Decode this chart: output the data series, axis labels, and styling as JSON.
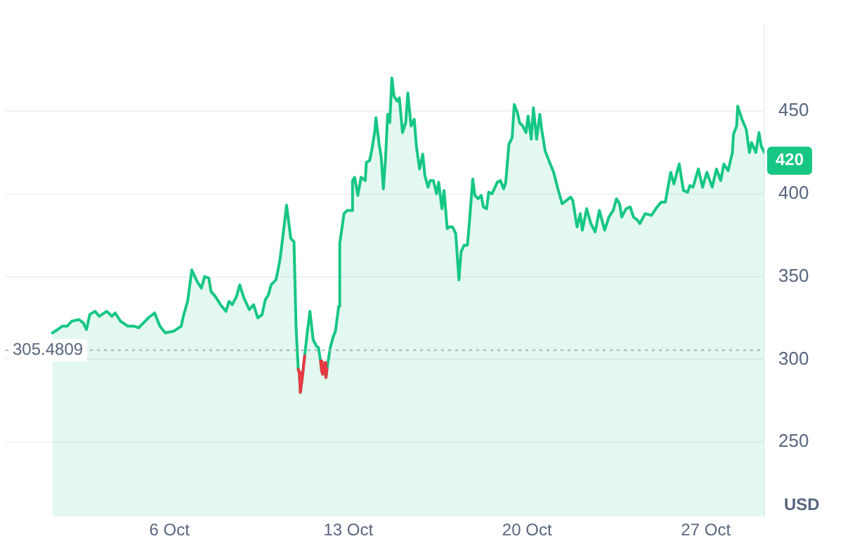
{
  "chart_data": {
    "type": "area",
    "ylabel": "USD",
    "xlim": [
      "--09-29T14:00",
      "--10-29T07:00"
    ],
    "ylim": [
      205,
      502
    ],
    "xticks": [
      {
        "value": "--10-06",
        "label": "6 Oct"
      },
      {
        "value": "--10-13",
        "label": "13 Oct"
      },
      {
        "value": "--10-20",
        "label": "20 Oct"
      },
      {
        "value": "--10-27",
        "label": "27 Oct"
      }
    ],
    "yticks": [
      250,
      300,
      350,
      400,
      450
    ],
    "grid": "y",
    "legend": false,
    "marker": "none",
    "ref_lines": [
      {
        "axis": "y",
        "value": 305.4809,
        "label": "305.4809",
        "line_style": "dotted",
        "color": "#a6b0c3"
      }
    ],
    "annotations": [
      {
        "text": "420",
        "x": "--10-29T07:00",
        "y": 420
      }
    ],
    "series": [
      {
        "color": "#16c784",
        "x": [
          "--10-01T10:00",
          "--10-01T15:00",
          "--10-01T19:00",
          "--10-02T00:00",
          "--10-02T04:00",
          "--10-02T11:00",
          "--10-02T15:00",
          "--10-02T18:00",
          "--10-02T21:00",
          "--10-03T02:00",
          "--10-03T06:00",
          "--10-03T13:00",
          "--10-03T18:00",
          "--10-03T21:00",
          "--10-04T02:00",
          "--10-04T09:00",
          "--10-04T15:00",
          "--10-04T19:00",
          "--10-05T04:00",
          "--10-05T10:00",
          "--10-05T15:00",
          "--10-05T20:00",
          "--10-06T04:00",
          "--10-06T11:00",
          "--10-06T13:00",
          "--10-06T17:00",
          "--10-06T21:00",
          "--10-07T02:00",
          "--10-07T06:00",
          "--10-07T09:00",
          "--10-07T13:00",
          "--10-07T15:00",
          "--10-07T19:00",
          "--10-08T00:00",
          "--10-08T05:00",
          "--10-08T08:00",
          "--10-08T11:00",
          "--10-08T15:00",
          "--10-08T18:00",
          "--10-08T22:00",
          "--10-09T03:00",
          "--10-09T07:00",
          "--10-09T11:00",
          "--10-09T15:00",
          "--10-09T18:00",
          "--10-09T21:00",
          "--10-09T23:30",
          "--10-10T04:00",
          "--10-10T06:00",
          "--10-10T08:00",
          "--10-10T12:00",
          "--10-10T14:00",
          "--10-10T18:00",
          "--10-10T21:00",
          "--10-10T23:00",
          "--10-11T01:00",
          "--10-11T02:00",
          "--10-11T03:00",
          "--10-11T05:00",
          "--10-11T07:00",
          "--10-11T10:00",
          "--10-11T12:00",
          "--10-11T15:00",
          "--10-11T18:00",
          "--10-11T20:00",
          "--10-11T22:00",
          "--10-11T23:00",
          "--10-12T00:00",
          "--10-12T02:00",
          "--10-12T03:00",
          "--10-12T04:00",
          "--10-12T07:00",
          "--10-12T10:00",
          "--10-12T12:00",
          "--10-12T15:00",
          "--10-12T16:00",
          "--10-12T20:00",
          "--10-12T23:00",
          "--10-13T03:00",
          "--10-13T04:00",
          "--10-13T06:00",
          "--10-13T09:00",
          "--10-13T12:00",
          "--10-13T16:00",
          "--10-13T17:00",
          "--10-13T20:00",
          "--10-13T22:00",
          "--10-14T01:00",
          "--10-14T02:00",
          "--10-14T05:00",
          "--10-14T07:00",
          "--10-14T09:00",
          "--10-14T11:00",
          "--10-14T13:00",
          "--10-14T14:00",
          "--10-14T15:00",
          "--10-14T17:00",
          "--10-14T19:00",
          "--10-14T22:00",
          "--10-15T00:00",
          "--10-15T03:00",
          "--10-15T06:00",
          "--10-15T08:00",
          "--10-15T11:00",
          "--10-15T14:00",
          "--10-15T16:00",
          "--10-15T19:00",
          "--10-15T22:00",
          "--10-16T00:00",
          "--10-16T03:00",
          "--10-16T05:00",
          "--10-16T08:00",
          "--10-16T11:00",
          "--10-16T13:00",
          "--10-16T16:00",
          "--10-16T18:00",
          "--10-16T21:00",
          "--10-16T23:00",
          "--10-17T02:00",
          "--10-17T05:00",
          "--10-17T08:00",
          "--10-17T10:00",
          "--10-17T13:00",
          "--10-17T16:00",
          "--10-17T18:00",
          "--10-17T21:00",
          "--10-17T23:00",
          "--10-18T02:00",
          "--10-18T05:00",
          "--10-18T07:00",
          "--10-18T10:00",
          "--10-18T12:00",
          "--10-18T15:00",
          "--10-18T18:00",
          "--10-18T20:00",
          "--10-18T23:00",
          "--10-19T02:00",
          "--10-19T04:00",
          "--10-19T07:00",
          "--10-19T10:00",
          "--10-19T12:00",
          "--10-19T15:00",
          "--10-19T17:00",
          "--10-19T20:00",
          "--10-19T23:00",
          "--10-20T01:00",
          "--10-20T04:00",
          "--10-20T06:00",
          "--10-20T09:00",
          "--10-20T12:00",
          "--10-20T14:00",
          "--10-20T17:00",
          "--10-20T20:00",
          "--10-21T01:00",
          "--10-21T05:00",
          "--10-21T09:00",
          "--10-21T17:00",
          "--10-21T19:00",
          "--10-21T23:00",
          "--10-22T02:00",
          "--10-22T04:00",
          "--10-22T08:00",
          "--10-22T12:00",
          "--10-22T16:00",
          "--10-22T20:00",
          "--10-23T01:00",
          "--10-23T05:00",
          "--10-23T09:00",
          "--10-23T12:00",
          "--10-23T15:00",
          "--10-23T17:00",
          "--10-23T21:00",
          "--10-24T01:00",
          "--10-24T04:00",
          "--10-24T08:00",
          "--10-24T10:00",
          "--10-24T15:00",
          "--10-24T21:00",
          "--10-25T01:00",
          "--10-25T06:00",
          "--10-25T10:00",
          "--10-25T15:00",
          "--10-25T18:00",
          "--10-25T23:00",
          "--10-26T03:00",
          "--10-26T07:00",
          "--10-26T09:00",
          "--10-26T12:00",
          "--10-26T17:00",
          "--10-26T21:00",
          "--10-27T01:00",
          "--10-27T06:00",
          "--10-27T10:00",
          "--10-27T14:00",
          "--10-27T17:00",
          "--10-27T21:00",
          "--10-28T01:00",
          "--10-28T02:00",
          "--10-28T05:00",
          "--10-28T06:00",
          "--10-28T10:00",
          "--10-28T14:00",
          "--10-28T17:00",
          "--10-28T19:00",
          "--10-28T23:00",
          "--10-29T02:00",
          "--10-29T04:00",
          "--10-29T07:00"
        ],
        "values": [
          316,
          318,
          320,
          320,
          323,
          324,
          322,
          318,
          327,
          329,
          326,
          329,
          326,
          328,
          323,
          320,
          320,
          319,
          325,
          328,
          320,
          316,
          317,
          320,
          326,
          335,
          354,
          347,
          343,
          350,
          349,
          341,
          338,
          333,
          329,
          335,
          333,
          338,
          345,
          337,
          330,
          333,
          325,
          327,
          336,
          339,
          345,
          348,
          354,
          361,
          382,
          393,
          373,
          371,
          319,
          294,
          292,
          280,
          290,
          302,
          319,
          329,
          312,
          308,
          307,
          299,
          293,
          291,
          298,
          289,
          294,
          307,
          314,
          317,
          332,
          370,
          388,
          390,
          390,
          408,
          410,
          399,
          410,
          408,
          419,
          420,
          426,
          438,
          446,
          430,
          422,
          403,
          421,
          448,
          448,
          443,
          470,
          459,
          456,
          458,
          437,
          443,
          461,
          441,
          445,
          429,
          415,
          424,
          411,
          404,
          408,
          408,
          400,
          407,
          391,
          402,
          379,
          380,
          380,
          376,
          348,
          365,
          369,
          369,
          384,
          409,
          399,
          397,
          399,
          392,
          391,
          401,
          400,
          404,
          407,
          408,
          403,
          407,
          430,
          434,
          454,
          449,
          443,
          441,
          437,
          447,
          433,
          452,
          433,
          448,
          438,
          426,
          421,
          413,
          403,
          394,
          398,
          396,
          380,
          388,
          378,
          391,
          382,
          377,
          390,
          378,
          386,
          390,
          397,
          394,
          386,
          391,
          392,
          386,
          384,
          382,
          388,
          387,
          391,
          395,
          395,
          413,
          406,
          418,
          402,
          401,
          405,
          404,
          415,
          404,
          413,
          404,
          415,
          408,
          418,
          414,
          425,
          436,
          441,
          453,
          445,
          439,
          425,
          431,
          425,
          437,
          429,
          425
        ]
      },
      {
        "type": "line",
        "color": "#ea3943",
        "x": [
          "--10-11T01:00",
          "--10-11T02:00",
          "--10-11T03:00",
          "--10-11T05:00",
          "--10-11T07:00",
          "--10-11T10:00",
          "--10-11T22:00",
          "--10-11T23:00",
          "--10-12T00:00",
          "--10-12T02:00",
          "--10-12T03:00",
          "--10-12T04:00"
        ],
        "values": [
          294,
          292,
          280,
          290,
          302,
          null,
          299,
          293,
          291,
          298,
          289,
          294
        ]
      }
    ]
  }
}
